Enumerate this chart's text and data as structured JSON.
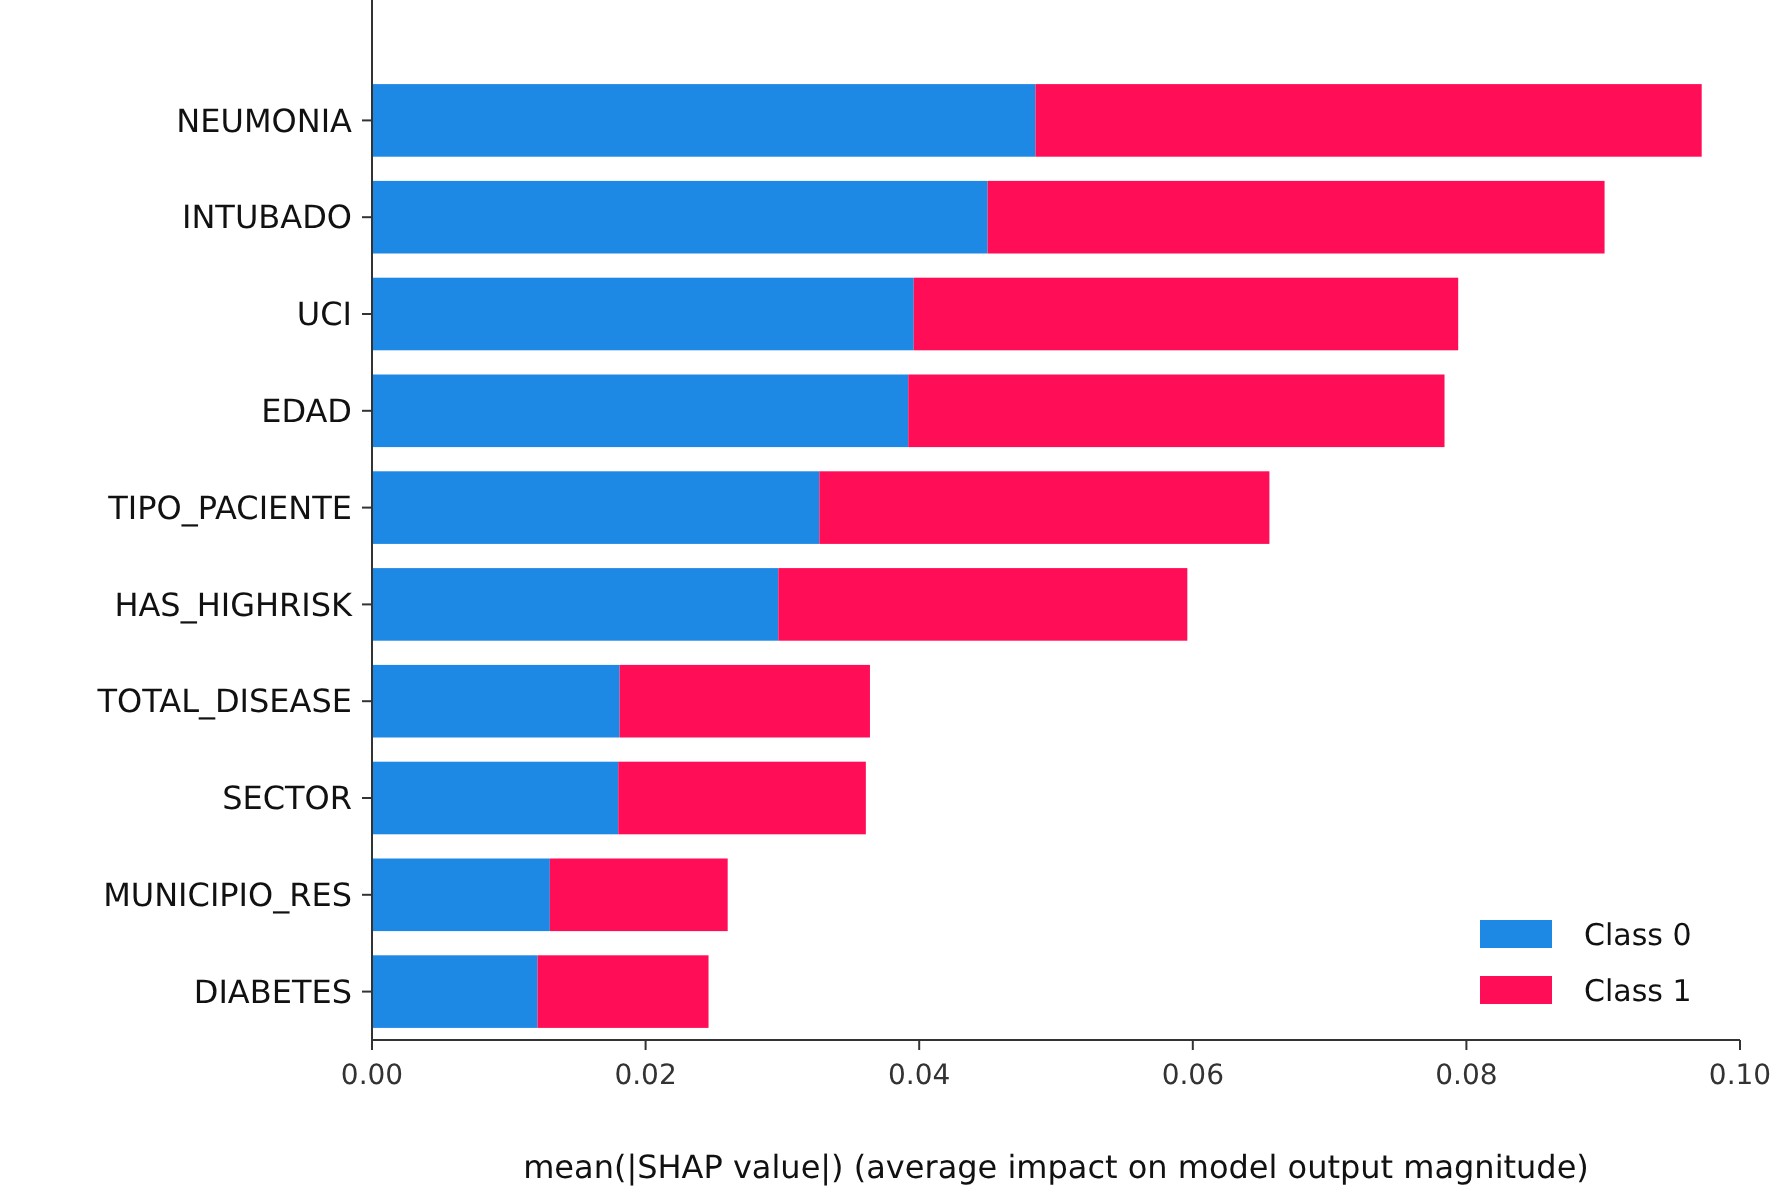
{
  "chart_data": {
    "type": "bar",
    "orientation": "horizontal",
    "stacked": true,
    "xlabel": "mean(|SHAP value|) (average impact on model output magnitude)",
    "categories": [
      "NEUMONIA",
      "INTUBADO",
      "UCI",
      "EDAD",
      "TIPO_PACIENTE",
      "HAS_HIGHRISK",
      "TOTAL_DISEASE",
      "SECTOR",
      "MUNICIPIO_RES",
      "DIABETES"
    ],
    "series": [
      {
        "name": "Class 0",
        "color": "#1e88e5",
        "values": [
          0.0485,
          0.045,
          0.0396,
          0.0392,
          0.0327,
          0.0297,
          0.0181,
          0.018,
          0.013,
          0.0121
        ]
      },
      {
        "name": "Class 1",
        "color": "#ff0d57",
        "values": [
          0.0487,
          0.0451,
          0.0398,
          0.0392,
          0.0329,
          0.0299,
          0.0183,
          0.0181,
          0.013,
          0.0125
        ]
      }
    ],
    "xlim": [
      0,
      0.1
    ],
    "xticks": [
      {
        "value": 0,
        "label": "0.00"
      },
      {
        "value": 0.02,
        "label": "0.02"
      },
      {
        "value": 0.04,
        "label": "0.04"
      },
      {
        "value": 0.06,
        "label": "0.06"
      },
      {
        "value": 0.08,
        "label": "0.08"
      },
      {
        "value": 0.1,
        "label": "0.10"
      }
    ],
    "grid": false,
    "legend": "bottom right"
  }
}
